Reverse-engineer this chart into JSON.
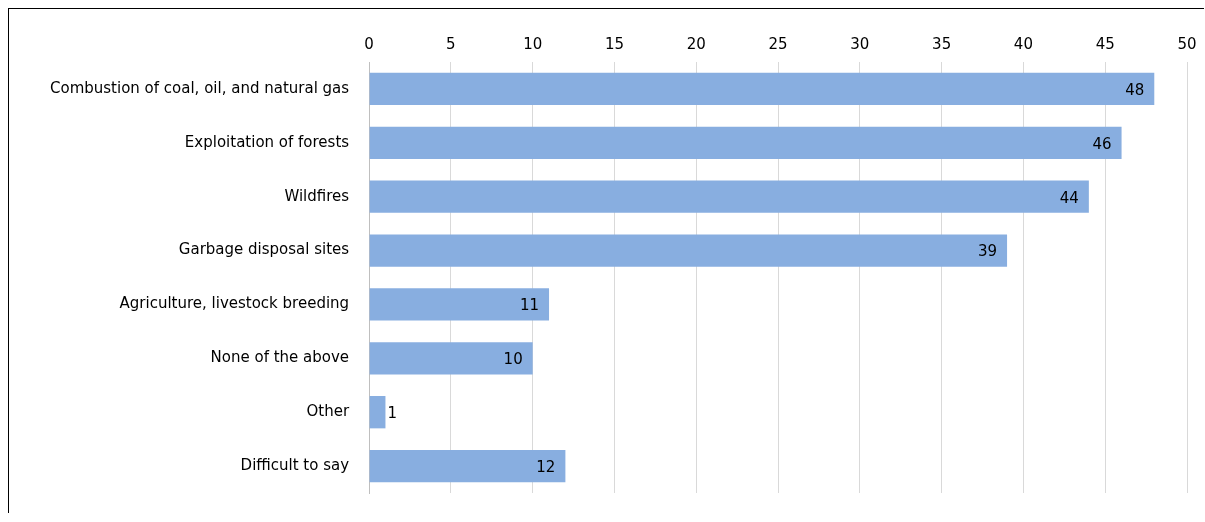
{
  "chart_data": {
    "type": "bar",
    "orientation": "horizontal",
    "categories": [
      "Combustion of coal, oil, and natural gas",
      "Exploitation of forests",
      "Wildfires",
      "Garbage disposal sites",
      "Agriculture, livestock breeding",
      "None of the above",
      "Other",
      "Difficult to say"
    ],
    "values": [
      48,
      46,
      44,
      39,
      11,
      10,
      1,
      12
    ],
    "color": "#88aee0",
    "xlim": [
      0,
      50
    ],
    "xticks": [
      0,
      5,
      10,
      15,
      20,
      25,
      30,
      35,
      40,
      45,
      50
    ],
    "grid": "x",
    "data_labels": true,
    "legend": false
  }
}
